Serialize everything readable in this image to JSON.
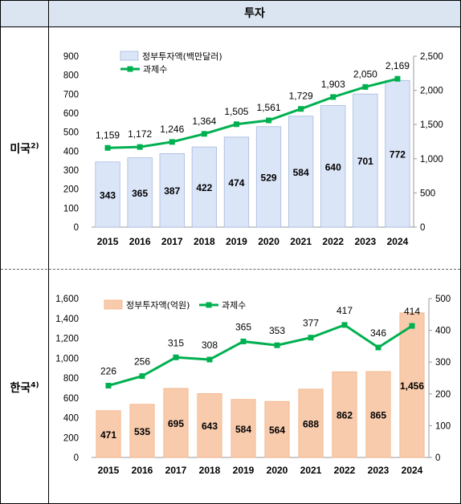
{
  "header": {
    "title": "투자"
  },
  "rows": [
    {
      "label": "미국",
      "note": "2)"
    },
    {
      "label": "한국",
      "note": "4)"
    }
  ],
  "chart_data": [
    {
      "type": "bar",
      "categories": [
        "2015",
        "2016",
        "2017",
        "2018",
        "2019",
        "2020",
        "2021",
        "2022",
        "2023",
        "2024"
      ],
      "series": [
        {
          "name": "정부투자액(백만달러)",
          "type": "bar",
          "axis": "left",
          "color": "#dbe5f8",
          "values": [
            343,
            365,
            387,
            422,
            474,
            529,
            584,
            640,
            701,
            772
          ],
          "labels": [
            "343",
            "365",
            "387",
            "422",
            "474",
            "529",
            "584",
            "640",
            "701",
            "772"
          ]
        },
        {
          "name": "과제수",
          "type": "line",
          "axis": "right",
          "color": "#00b050",
          "values": [
            1159,
            1172,
            1246,
            1364,
            1505,
            1561,
            1729,
            1903,
            2050,
            2169
          ],
          "labels": [
            "1,159",
            "1,172",
            "1,246",
            "1,364",
            "1,505",
            "1,561",
            "1,729",
            "1,903",
            "2,050",
            "2,169"
          ]
        }
      ],
      "ylim": [
        0,
        900
      ],
      "yticks": [
        "0",
        "100",
        "200",
        "300",
        "400",
        "500",
        "600",
        "700",
        "800",
        "900"
      ],
      "y2lim": [
        0,
        2500
      ],
      "y2ticks": [
        "0",
        "500",
        "1,000",
        "1,500",
        "2,000",
        "2,500"
      ],
      "legend": "top-left"
    },
    {
      "type": "bar",
      "categories": [
        "2015",
        "2016",
        "2017",
        "2018",
        "2019",
        "2020",
        "2021",
        "2022",
        "2023",
        "2024"
      ],
      "series": [
        {
          "name": "정부투자액(억원)",
          "type": "bar",
          "axis": "left",
          "color": "#f8cbad",
          "values": [
            471,
            535,
            695,
            643,
            584,
            564,
            688,
            862,
            865,
            1456
          ],
          "labels": [
            "471",
            "535",
            "695",
            "643",
            "584",
            "564",
            "688",
            "862",
            "865",
            "1,456"
          ]
        },
        {
          "name": "과제수",
          "type": "line",
          "axis": "right",
          "color": "#00b050",
          "values": [
            226,
            256,
            315,
            308,
            365,
            353,
            377,
            417,
            346,
            414
          ],
          "labels": [
            "226",
            "256",
            "315",
            "308",
            "365",
            "353",
            "377",
            "417",
            "346",
            "414"
          ]
        }
      ],
      "ylim": [
        0,
        1600
      ],
      "yticks": [
        "0",
        "200",
        "400",
        "600",
        "800",
        "1,000",
        "1,200",
        "1,400",
        "1,600"
      ],
      "y2lim": [
        0,
        500
      ],
      "y2ticks": [
        "0",
        "100",
        "200",
        "300",
        "400",
        "500"
      ],
      "legend": "top-left"
    }
  ]
}
